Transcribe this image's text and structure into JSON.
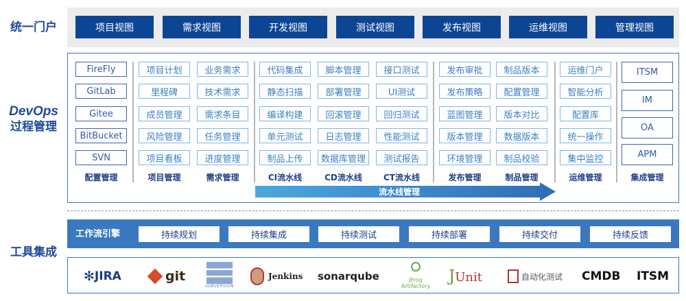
{
  "side_labels": {
    "portal": "统一门户",
    "devops_1": "DevOps",
    "devops_2": "过程管理",
    "tools": "工具集成"
  },
  "portal_views": [
    "项目视图",
    "需求视图",
    "开发视图",
    "测试视图",
    "发布视图",
    "运维视图",
    "管理视图"
  ],
  "columns": [
    {
      "items": [
        "FireFly",
        "GitLab",
        "Gitee",
        "BitBucket",
        "SVN"
      ],
      "label": "配置管理"
    },
    {
      "items": [
        "项目计划",
        "里程碑",
        "成员管理",
        "风险管理",
        "项目看板"
      ],
      "label": "项目管理"
    },
    {
      "items": [
        "业务需求",
        "技术需求",
        "需求条目",
        "任务管理",
        "进度管理"
      ],
      "label": "需求管理"
    },
    {
      "items": [
        "代码集成",
        "静态扫描",
        "编译构建",
        "单元测试",
        "制品上传"
      ],
      "label": "CI流水线"
    },
    {
      "items": [
        "脚本管理",
        "部署管理",
        "回滚管理",
        "日志管理",
        "数据库管理"
      ],
      "label": "CD流水线"
    },
    {
      "items": [
        "接口测试",
        "UI测试",
        "回归测试",
        "性能测试",
        "测试报告"
      ],
      "label": "CT流水线"
    },
    {
      "items": [
        "发布审批",
        "发布策略",
        "蓝图管理",
        "版本管理",
        "环境管理"
      ],
      "label": "发布管理"
    },
    {
      "items": [
        "制品版本",
        "配置管理",
        "版本对比",
        "数据版本",
        "制品校验"
      ],
      "label": "制品管理"
    },
    {
      "items": [
        "运维门户",
        "智能分析",
        "配置库",
        "统一操作",
        "集中监控"
      ],
      "label": "运维管理"
    },
    {
      "items": [
        "ITSM",
        "IM",
        "OA",
        "APM"
      ],
      "label": "集成管理"
    }
  ],
  "pipeline_label": "流水线管理",
  "workflow": {
    "label": "工作流引擎",
    "items": [
      "持续规划",
      "持续集成",
      "持续测试",
      "持续部署",
      "持续交付",
      "持续反馈"
    ]
  },
  "tools": [
    "JIRA",
    "git",
    "Subversion",
    "Jenkins",
    "sonarqube",
    "JFrog Artifactory",
    "JUnit",
    "自动化测试",
    "CMDB",
    "ITSM"
  ],
  "colors": {
    "primary": "#0d4595",
    "workflow": "#3a78c0",
    "cell_border": "#7fb6e2"
  }
}
